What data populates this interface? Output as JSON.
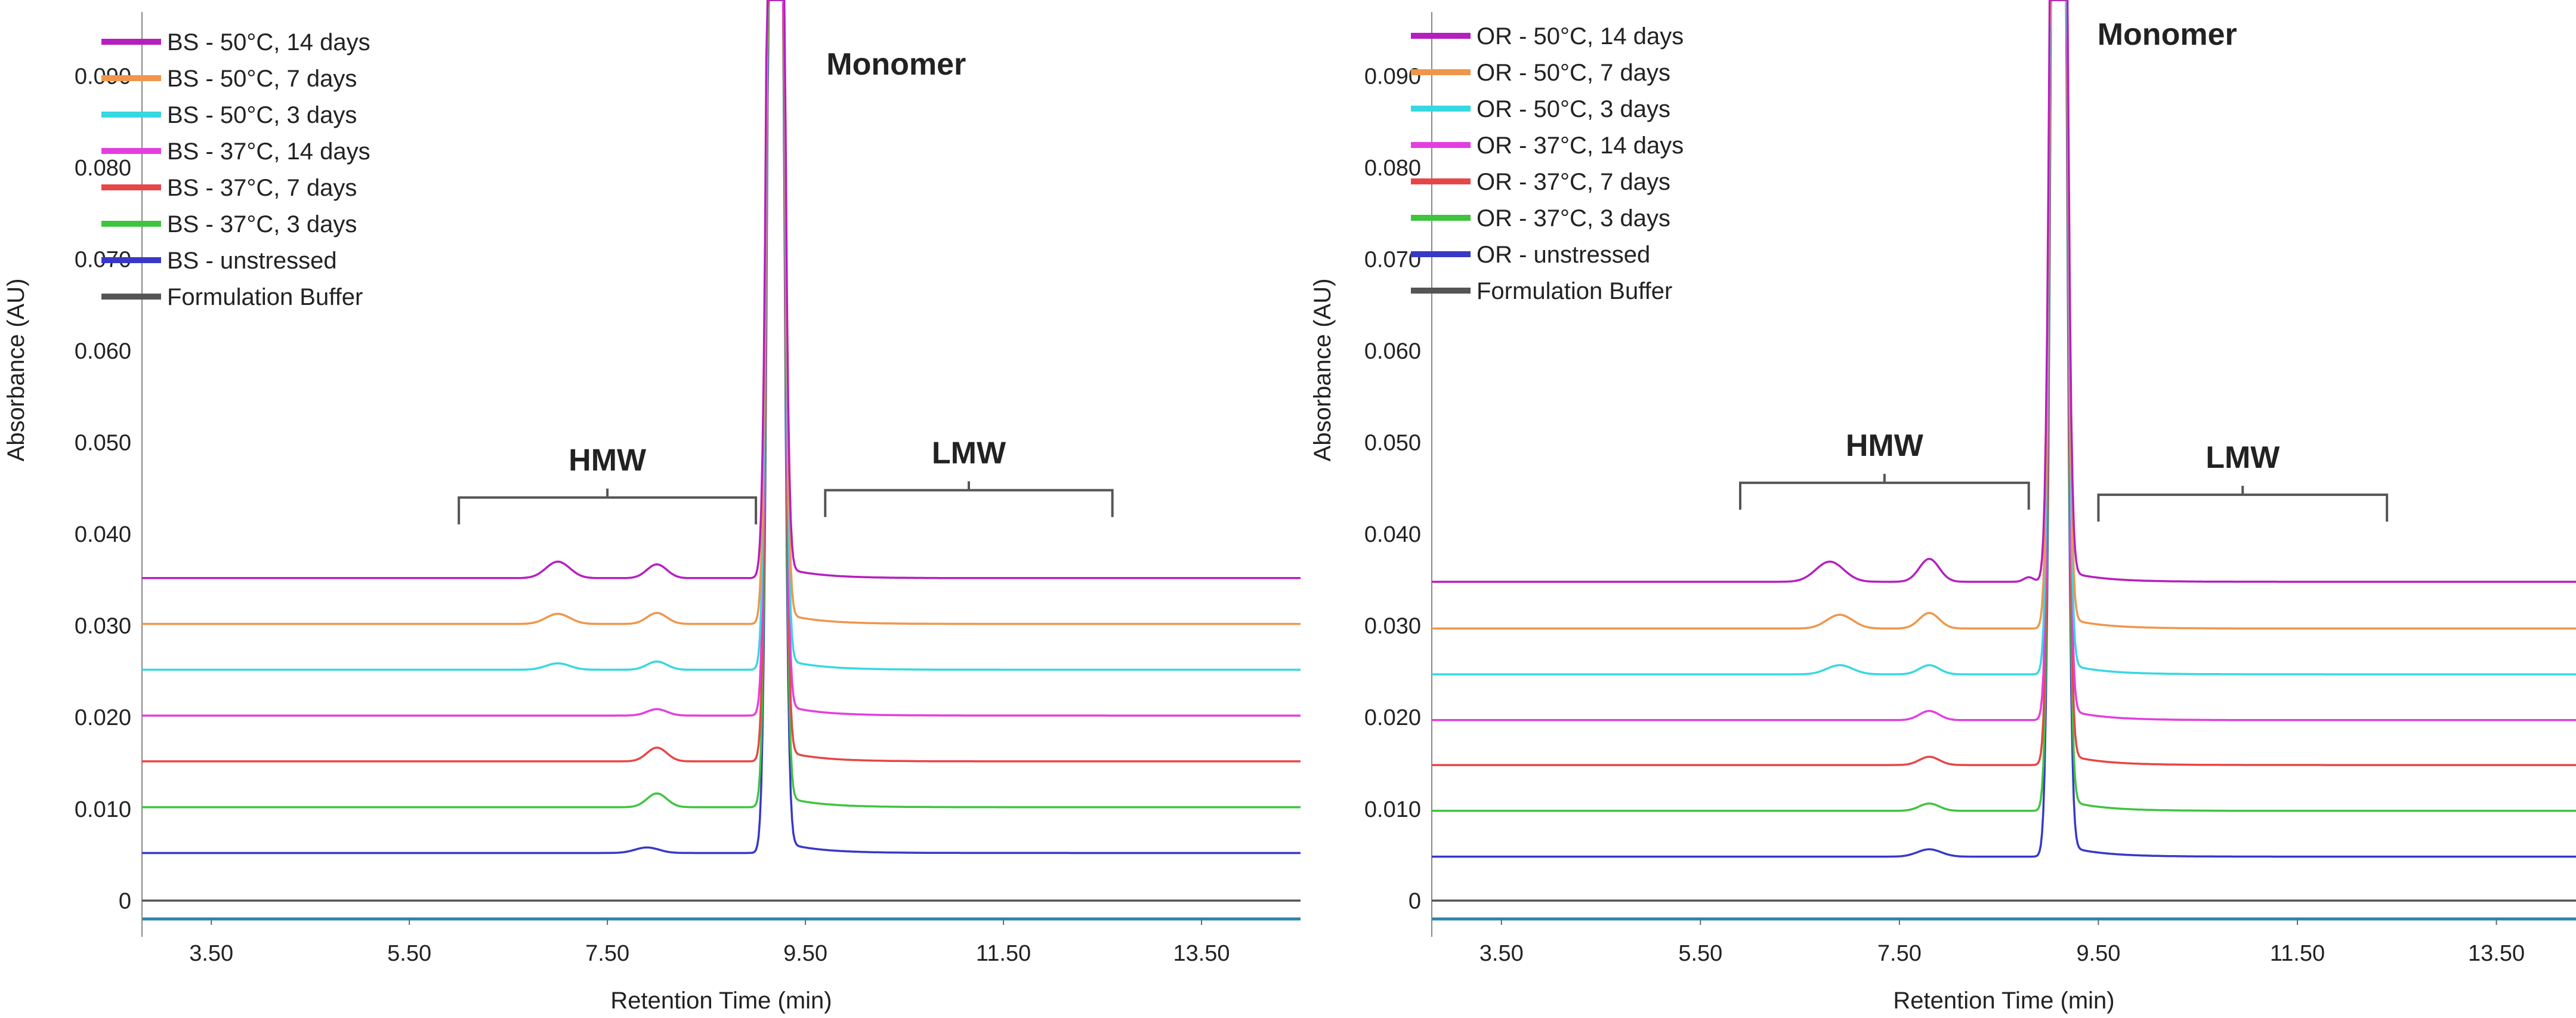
{
  "chart_data": [
    {
      "type": "line",
      "panel": "left",
      "title": "",
      "xlabel": "Retention Time (min)",
      "ylabel": "Absorbance (AU)",
      "xlim": [
        2.8,
        14.5
      ],
      "ylim": [
        -0.002,
        0.097
      ],
      "x_ticks": [
        "3.50",
        "5.50",
        "7.50",
        "9.50",
        "11.50",
        "13.50"
      ],
      "x_tick_values": [
        3.5,
        5.5,
        7.5,
        9.5,
        11.5,
        13.5
      ],
      "y_ticks": [
        "0",
        "0.010",
        "0.020",
        "0.030",
        "0.040",
        "0.050",
        "0.060",
        "0.070",
        "0.080",
        "0.090"
      ],
      "y_tick_values": [
        0,
        0.01,
        0.02,
        0.03,
        0.04,
        0.05,
        0.06,
        0.07,
        0.08,
        0.09
      ],
      "peak_x": 9.2,
      "monomer_label": "Monomer",
      "brackets": [
        {
          "label": "HMW",
          "x_start": 6.0,
          "x_end": 9.0,
          "y": 0.044
        },
        {
          "label": "LMW",
          "x_start": 9.7,
          "x_end": 12.6,
          "y": 0.0448
        }
      ],
      "series": [
        {
          "name": "BS - 50°C, 14 days",
          "color": "#b61fbf",
          "baseline": 0.0352,
          "bumps": [
            [
              7.0,
              0.0018,
              0.12
            ],
            [
              8.0,
              0.0015,
              0.1
            ],
            [
              9.1,
              0.0005,
              0.05
            ]
          ]
        },
        {
          "name": "BS - 50°C, 7 days",
          "color": "#f0964b",
          "baseline": 0.0302,
          "bumps": [
            [
              7.0,
              0.0011,
              0.12
            ],
            [
              8.0,
              0.0012,
              0.1
            ]
          ]
        },
        {
          "name": "BS - 50°C, 3 days",
          "color": "#37d8e0",
          "baseline": 0.0252,
          "bumps": [
            [
              7.0,
              0.0007,
              0.12
            ],
            [
              8.0,
              0.0009,
              0.1
            ]
          ]
        },
        {
          "name": "BS - 37°C, 14 days",
          "color": "#e33fe0",
          "baseline": 0.0202,
          "bumps": [
            [
              8.0,
              0.0007,
              0.1
            ]
          ]
        },
        {
          "name": "BS - 37°C, 7 days",
          "color": "#e84646",
          "baseline": 0.0152,
          "bumps": [
            [
              8.0,
              0.0015,
              0.1
            ]
          ]
        },
        {
          "name": "BS - 37°C, 3 days",
          "color": "#3fc43f",
          "baseline": 0.0102,
          "bumps": [
            [
              8.0,
              0.0015,
              0.1
            ]
          ]
        },
        {
          "name": "BS - unstressed",
          "color": "#3838c8",
          "baseline": 0.0052,
          "bumps": [
            [
              7.9,
              0.0006,
              0.12
            ]
          ]
        },
        {
          "name": "Formulation Buffer",
          "color": "#555555",
          "baseline": 0.0,
          "bumps": []
        }
      ]
    },
    {
      "type": "line",
      "panel": "right",
      "title": "",
      "xlabel": "Retention Time (min)",
      "ylabel": "Absorbance (AU)",
      "xlim": [
        2.8,
        14.3
      ],
      "ylim": [
        -0.002,
        0.097
      ],
      "x_ticks": [
        "3.50",
        "5.50",
        "7.50",
        "9.50",
        "11.50",
        "13.50"
      ],
      "x_tick_values": [
        3.5,
        5.5,
        7.5,
        9.5,
        11.5,
        13.5
      ],
      "y_ticks": [
        "0",
        "0.010",
        "0.020",
        "0.030",
        "0.040",
        "0.050",
        "0.060",
        "0.070",
        "0.080",
        "0.090"
      ],
      "y_tick_values": [
        0,
        0.01,
        0.02,
        0.03,
        0.04,
        0.05,
        0.06,
        0.07,
        0.08,
        0.09
      ],
      "peak_x": 9.1,
      "monomer_label": "Monomer",
      "brackets": [
        {
          "label": "HMW",
          "x_start": 5.9,
          "x_end": 8.8,
          "y": 0.0456
        },
        {
          "label": "LMW",
          "x_start": 9.5,
          "x_end": 12.4,
          "y": 0.0443
        }
      ],
      "series": [
        {
          "name": "OR - 50°C, 14 days",
          "color": "#b61fbf",
          "baseline": 0.0348,
          "bumps": [
            [
              6.8,
              0.0022,
              0.14
            ],
            [
              7.8,
              0.0025,
              0.1
            ],
            [
              8.8,
              0.0005,
              0.05
            ]
          ]
        },
        {
          "name": "OR - 50°C, 7 days",
          "color": "#f0964b",
          "baseline": 0.0297,
          "bumps": [
            [
              6.9,
              0.0015,
              0.13
            ],
            [
              7.8,
              0.0017,
              0.1
            ]
          ]
        },
        {
          "name": "OR - 50°C, 3 days",
          "color": "#37d8e0",
          "baseline": 0.0247,
          "bumps": [
            [
              6.9,
              0.001,
              0.13
            ],
            [
              7.8,
              0.001,
              0.1
            ]
          ]
        },
        {
          "name": "OR - 37°C, 14 days",
          "color": "#e33fe0",
          "baseline": 0.0197,
          "bumps": [
            [
              7.8,
              0.001,
              0.1
            ]
          ]
        },
        {
          "name": "OR - 37°C, 7 days",
          "color": "#e84646",
          "baseline": 0.0148,
          "bumps": [
            [
              7.8,
              0.0009,
              0.1
            ]
          ]
        },
        {
          "name": "OR - 37°C, 3 days",
          "color": "#3fc43f",
          "baseline": 0.0098,
          "bumps": [
            [
              7.8,
              0.0008,
              0.1
            ]
          ]
        },
        {
          "name": "OR - unstressed",
          "color": "#3838c8",
          "baseline": 0.0048,
          "bumps": [
            [
              7.8,
              0.0008,
              0.12
            ]
          ]
        },
        {
          "name": "Formulation Buffer",
          "color": "#555555",
          "baseline": 0.0,
          "bumps": []
        }
      ]
    }
  ]
}
